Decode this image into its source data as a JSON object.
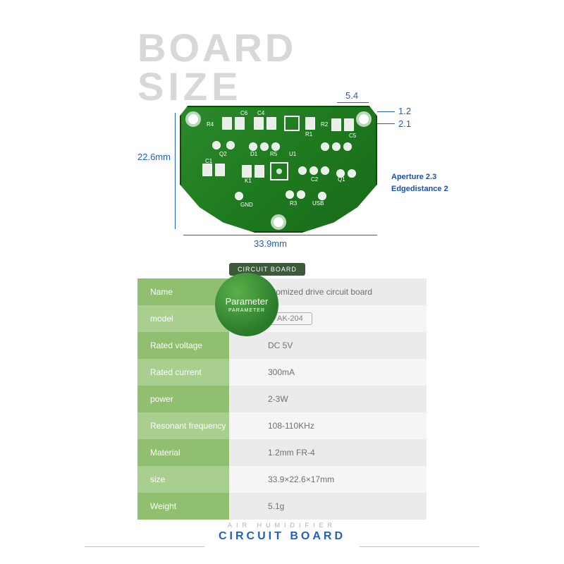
{
  "title": {
    "line1": "BOARD",
    "line2": "SIZE"
  },
  "dimensions": {
    "height": "22.6mm",
    "width": "33.9mm",
    "top_gap": "5.4",
    "right_top": "1.2",
    "right_top2": "2.1",
    "aperture": "Aperture 2.3",
    "edgedistance": "Edgedistance 2"
  },
  "pcb_labels": {
    "r4": "R4",
    "c6": "C6",
    "c4": "C4",
    "r1": "R1",
    "r2": "R2",
    "c5": "C5",
    "q2": "Q2",
    "d1": "D1",
    "r5": "R5",
    "u1": "U1",
    "c1": "C1",
    "k1": "K1",
    "c2": "C2",
    "q1": "Q1",
    "gnd": "GND",
    "r3": "R3",
    "usb": "USB"
  },
  "badge": {
    "top": "CIRCUIT BOARD",
    "main": "Parameter",
    "sub": "PARAMETER"
  },
  "specs": [
    {
      "label": "Name",
      "value": "Atomized drive circuit board",
      "boxed": false
    },
    {
      "label": "model",
      "value": "AK-204",
      "boxed": true
    },
    {
      "label": "Rated voltage",
      "value": "DC 5V",
      "boxed": false
    },
    {
      "label": "Rated current",
      "value": "300mA",
      "boxed": false
    },
    {
      "label": "power",
      "value": "2-3W",
      "boxed": false
    },
    {
      "label": "Resonant frequency",
      "value": "108-110KHz",
      "boxed": false
    },
    {
      "label": "Material",
      "value": "1.2mm FR-4",
      "boxed": false
    },
    {
      "label": "size",
      "value": "33.9×22.6×17mm",
      "boxed": false
    },
    {
      "label": "Weight",
      "value": "5.1g",
      "boxed": false
    }
  ],
  "footer": {
    "sub": "AIR HUMIDIFIER",
    "main": "CIRCUIT BOARD"
  },
  "colors": {
    "title_gray": "#d8d8d8",
    "dim_blue": "#2060c0",
    "pcb_green": "#1e7a1e",
    "row_label_odd": "#8fbf6f",
    "row_label_even": "#a8cf8f",
    "row_value_odd": "#ebebeb",
    "row_value_even": "#f5f5f5"
  }
}
